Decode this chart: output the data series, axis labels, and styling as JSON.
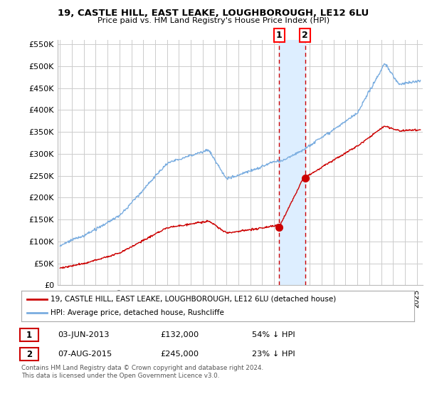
{
  "title": "19, CASTLE HILL, EAST LEAKE, LOUGHBOROUGH, LE12 6LU",
  "subtitle": "Price paid vs. HM Land Registry's House Price Index (HPI)",
  "ylim": [
    0,
    560000
  ],
  "xlim_start": 1994.8,
  "xlim_end": 2025.5,
  "transaction1": {
    "date_num": 2013.42,
    "price": 132000,
    "label": "1",
    "date_str": "03-JUN-2013",
    "amount": "£132,000",
    "pct": "54% ↓ HPI"
  },
  "transaction2": {
    "date_num": 2015.6,
    "price": 245000,
    "label": "2",
    "date_str": "07-AUG-2015",
    "amount": "£245,000",
    "pct": "23% ↓ HPI"
  },
  "legend_line1": "19, CASTLE HILL, EAST LEAKE, LOUGHBOROUGH, LE12 6LU (detached house)",
  "legend_line2": "HPI: Average price, detached house, Rushcliffe",
  "footnote": "Contains HM Land Registry data © Crown copyright and database right 2024.\nThis data is licensed under the Open Government Licence v3.0.",
  "line_color_red": "#cc0000",
  "line_color_blue": "#7aade0",
  "shade_color": "#ddeeff",
  "background_color": "#ffffff",
  "grid_color": "#cccccc"
}
